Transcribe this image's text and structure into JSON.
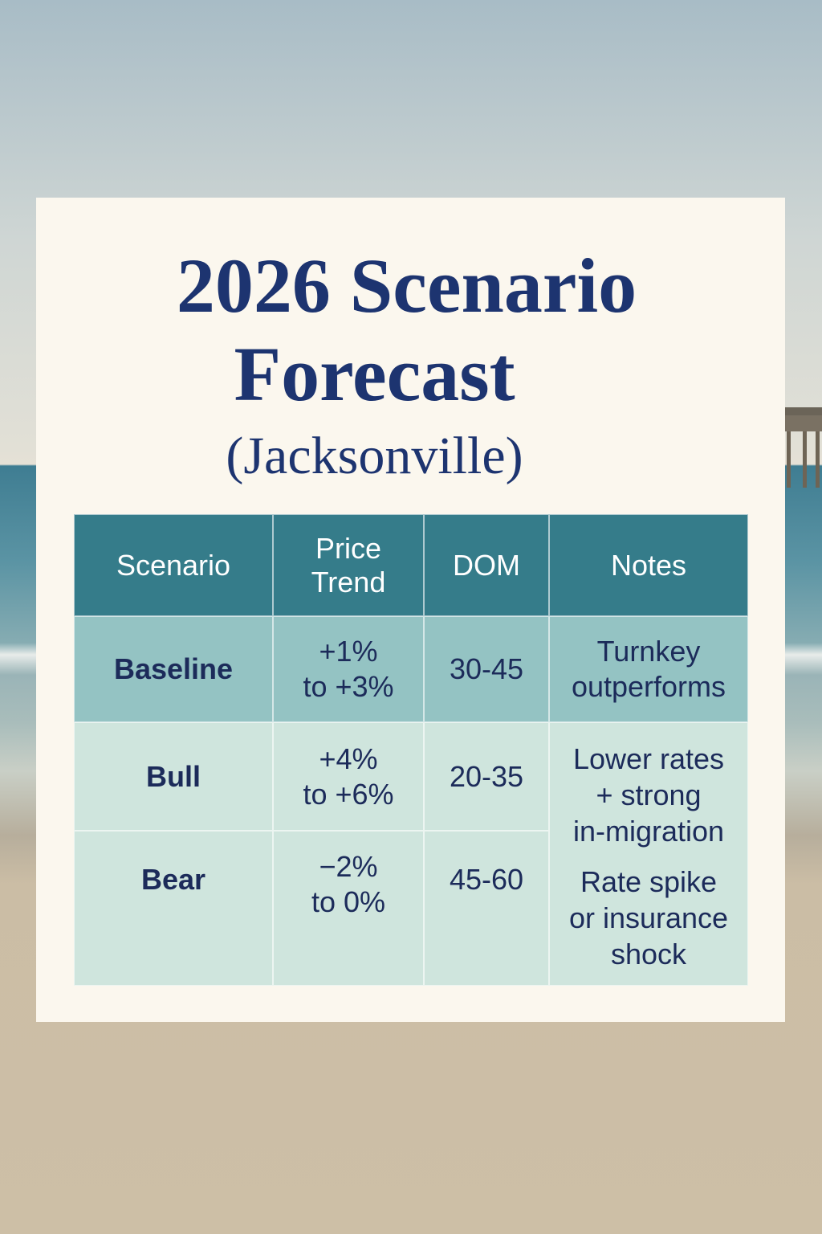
{
  "title": {
    "line1": "2026 Scenario",
    "line2": "Forecast",
    "line3": "(Jacksonville)"
  },
  "table": {
    "headers": [
      "Scenario",
      "Price Trend",
      "DOM",
      "Notes"
    ],
    "rows": [
      {
        "scenario": "Baseline",
        "price_line1": "+1%",
        "price_line2": "to +3%",
        "dom": "30-45",
        "notes": [
          "Turnkey",
          "outperforms"
        ]
      },
      {
        "scenario": "Bull",
        "price_line1": "+4%",
        "price_line2": "to +6%",
        "dom": "20-35",
        "notes": [
          "Lower rates",
          "+ strong",
          "in-migration"
        ]
      },
      {
        "scenario": "Bear",
        "price_line1": "−2%",
        "price_line2": "to 0%",
        "dom": "45-60",
        "notes": [
          "Rate spike",
          "or insurance",
          "shock"
        ]
      }
    ]
  },
  "colors": {
    "header": "#357c8a",
    "baseline_row": "#94c3c3",
    "other_rows": "#cfe5dd",
    "text": "#1c2b5a",
    "title": "#1d3470"
  }
}
